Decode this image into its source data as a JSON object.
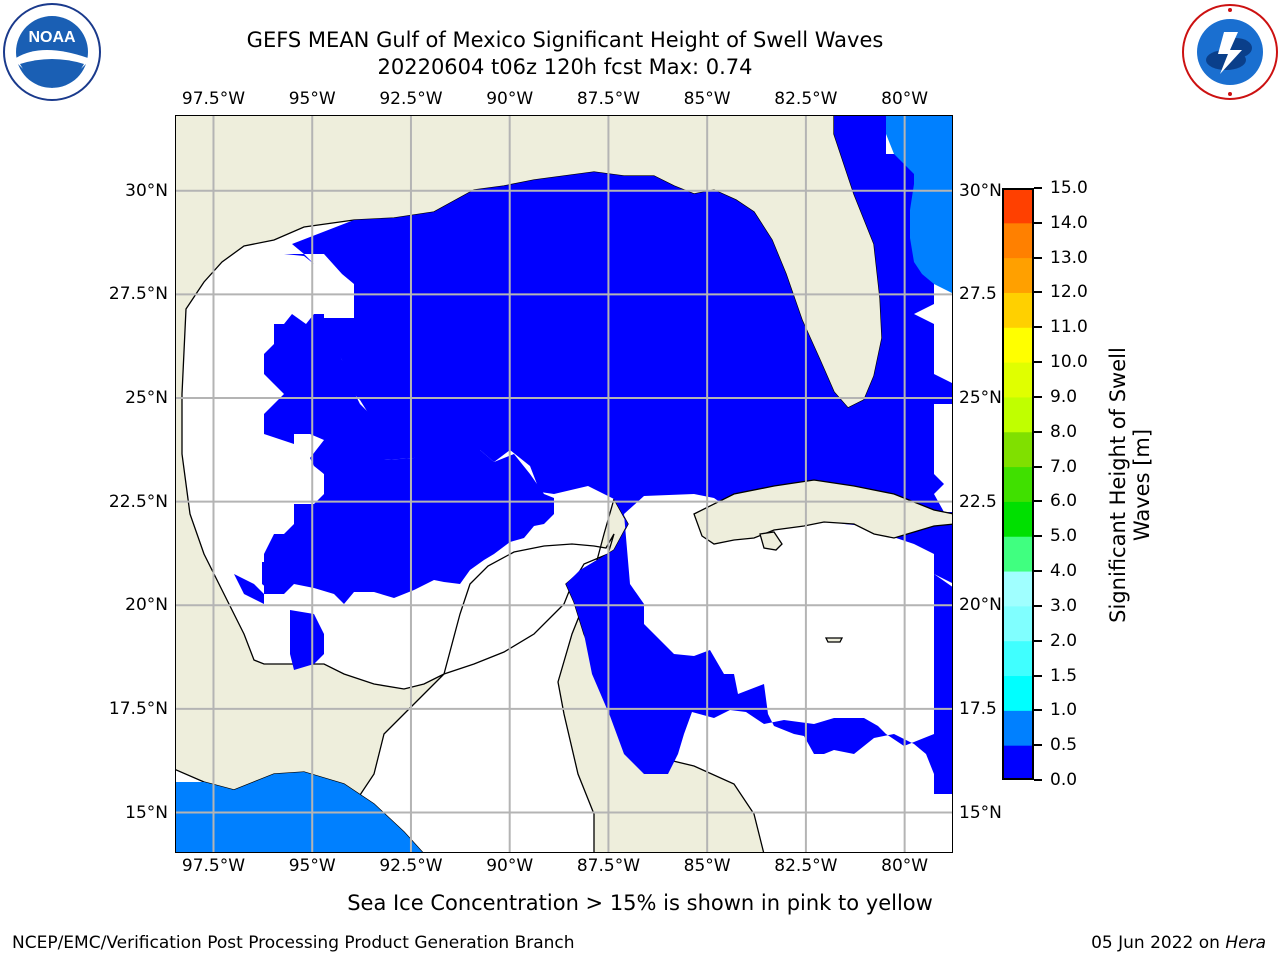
{
  "header": {
    "title_line1": "GEFS MEAN Gulf of Mexico Significant Height of Swell Waves",
    "title_line2": "20220604 t06z 120h fcst   Max: 0.74"
  },
  "logos": {
    "left": {
      "name": "noaa-logo",
      "text": "NOAA",
      "ring_text": "NATIONAL OCEANIC AND ATMOSPHERIC ADMINISTRATION · U.S. DEPARTMENT OF COMMERCE"
    },
    "right": {
      "name": "nws-logo",
      "ring_text": "NATIONAL WEATHER SERVICE"
    }
  },
  "map": {
    "lon_range": [
      -98.5,
      -78.75
    ],
    "lat_range": [
      14.0,
      31.85
    ],
    "lon_labels": [
      {
        "lon": -97.5,
        "label": "97.5°W"
      },
      {
        "lon": -95.0,
        "label": "95°W"
      },
      {
        "lon": -92.5,
        "label": "92.5°W"
      },
      {
        "lon": -90.0,
        "label": "90°W"
      },
      {
        "lon": -87.5,
        "label": "87.5°W"
      },
      {
        "lon": -85.0,
        "label": "85°W"
      },
      {
        "lon": -82.5,
        "label": "82.5°W"
      },
      {
        "lon": -80.0,
        "label": "80°W"
      }
    ],
    "lat_labels": [
      {
        "lat": 30.0,
        "label": "30°N"
      },
      {
        "lat": 27.5,
        "label": "27.5°N"
      },
      {
        "lat": 25.0,
        "label": "25°N"
      },
      {
        "lat": 22.5,
        "label": "22.5°N"
      },
      {
        "lat": 20.0,
        "label": "20°N"
      },
      {
        "lat": 17.5,
        "label": "17.5°N"
      },
      {
        "lat": 15.0,
        "label": "15°N"
      }
    ],
    "right_labels": [
      {
        "lat": 30.0,
        "label": "30°N"
      },
      {
        "lat": 27.5,
        "label": "27.5"
      },
      {
        "lat": 25.0,
        "label": "25°N"
      },
      {
        "lat": 22.5,
        "label": "22.5"
      },
      {
        "lat": 20.0,
        "label": "20°N"
      },
      {
        "lat": 17.5,
        "label": "17.5"
      },
      {
        "lat": 15.0,
        "label": "15°N"
      }
    ],
    "colors": {
      "land": "#eeeedc",
      "ocean_below_threshold": "#ffffff",
      "swell_0_to_0_5": "#0000ff",
      "swell_0_5_to_1": "#0080ff",
      "coastline": "#000000",
      "grid": "#b4b4b4"
    }
  },
  "colorbar": {
    "title_line1": "Significant Height of Swell",
    "title_line2": "Waves [m]",
    "levels": [
      0.0,
      0.5,
      1.0,
      1.5,
      2.0,
      3.0,
      4.0,
      5.0,
      6.0,
      7.0,
      8.0,
      9.0,
      10.0,
      11.0,
      12.0,
      13.0,
      14.0,
      15.0
    ],
    "labels": [
      "0.0",
      "0.5",
      "1.0",
      "1.5",
      "2.0",
      "3.0",
      "4.0",
      "5.0",
      "6.0",
      "7.0",
      "8.0",
      "9.0",
      "10.0",
      "11.0",
      "12.0",
      "13.0",
      "14.0",
      "15.0"
    ],
    "colors": [
      "#0000ff",
      "#0080ff",
      "#00ffff",
      "#40ffff",
      "#80ffff",
      "#a0ffff",
      "#40ff80",
      "#00e000",
      "#40e000",
      "#80e000",
      "#c0ff00",
      "#e0ff00",
      "#ffff00",
      "#ffd000",
      "#ffa000",
      "#ff8000",
      "#ff4000",
      "#ff0000"
    ]
  },
  "note": "Sea Ice Concentration > 15% is shown in pink to yellow",
  "footer": {
    "left": "NCEP/EMC/Verification Post Processing Product Generation Branch",
    "right_date": "05 Jun 2022 on ",
    "right_machine": "Hera"
  }
}
